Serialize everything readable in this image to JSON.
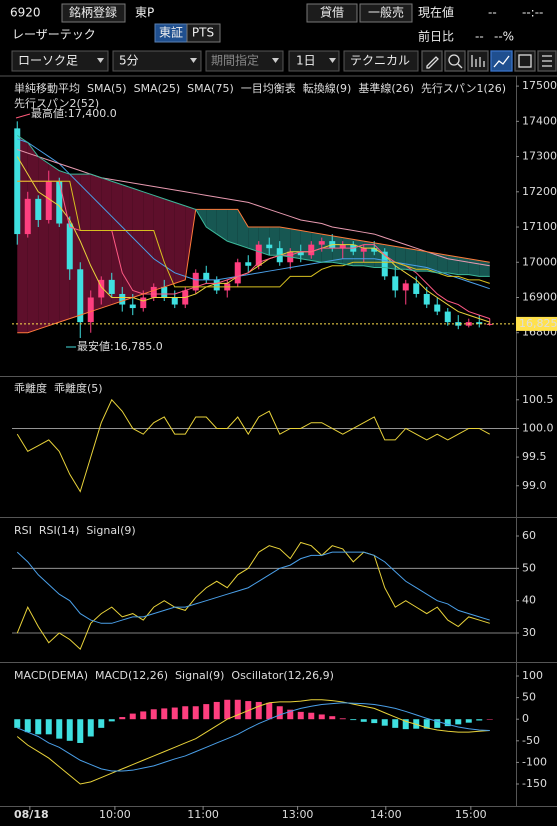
{
  "header": {
    "code": "6920",
    "register": "銘柄登録",
    "market": "東P",
    "name": "レーザーテック",
    "exchanges": [
      "東証",
      "PTS"
    ],
    "lending": "貸借",
    "sell_type": "一般売",
    "price_label": "現在値",
    "price": "--",
    "price_time": "--:--",
    "change_label": "前日比",
    "change": "--",
    "change_pct": "--%"
  },
  "toolbar": {
    "chart_kind": "ローソク足",
    "interval": "5分",
    "period": "期間指定",
    "span": "1日",
    "technical": "テクニカル"
  },
  "chart_data": [
    {
      "type": "candlestick",
      "legend_groups": [
        "単純移動平均",
        "一目均衡表"
      ],
      "up_color": "#ff3f7f",
      "down_color": "#3fe0e0",
      "open": [
        17380,
        17080,
        17180,
        17120,
        17230,
        17110,
        16980,
        16830,
        16900,
        16950,
        16910,
        16880,
        16870,
        16900,
        16930,
        16900,
        16880,
        16920,
        16970,
        16950,
        16920,
        16940,
        17000,
        16990,
        17050,
        17040,
        17000,
        17030,
        17020,
        17050,
        17060,
        17040,
        17050,
        17030,
        17040,
        17030,
        16960,
        16920,
        16940,
        16910,
        16880,
        16860,
        16830,
        16820,
        16830,
        16825
      ],
      "high": [
        17400,
        17200,
        17190,
        17260,
        17240,
        17130,
        17000,
        16920,
        16960,
        16970,
        16930,
        16910,
        16920,
        16940,
        16950,
        16920,
        16930,
        16980,
        16990,
        16960,
        16950,
        17010,
        17020,
        17060,
        17070,
        17060,
        17040,
        17050,
        17060,
        17070,
        17080,
        17060,
        17060,
        17050,
        17060,
        17040,
        16990,
        16950,
        16960,
        16930,
        16900,
        16870,
        16850,
        16840,
        16850,
        16840
      ],
      "low": [
        17050,
        17070,
        17100,
        17110,
        17100,
        16950,
        16785,
        16800,
        16880,
        16900,
        16860,
        16850,
        16860,
        16890,
        16890,
        16870,
        16870,
        16910,
        16940,
        16910,
        16900,
        16930,
        16970,
        16980,
        17020,
        16990,
        16980,
        17000,
        17010,
        17030,
        17030,
        17010,
        17020,
        17000,
        17020,
        16950,
        16900,
        16880,
        16900,
        16870,
        16850,
        16820,
        16810,
        16815,
        16815,
        16820
      ],
      "close": [
        17080,
        17180,
        17120,
        17230,
        17110,
        16980,
        16830,
        16900,
        16950,
        16910,
        16880,
        16870,
        16900,
        16930,
        16900,
        16880,
        16920,
        16970,
        16950,
        16920,
        16940,
        17000,
        16990,
        17050,
        17040,
        17000,
        17030,
        17020,
        17050,
        17060,
        17040,
        17050,
        17030,
        17040,
        17030,
        16960,
        16920,
        16940,
        16910,
        16880,
        16860,
        16830,
        16820,
        16830,
        16825,
        16825
      ],
      "series": [
        {
          "name": "SMA(5)",
          "group": 0,
          "color": "#e8d23a",
          "values": [
            17300,
            17250,
            17200,
            17180,
            17160,
            17120,
            17060,
            16990,
            16930,
            16900,
            16900,
            16900,
            16890,
            16900,
            16900,
            16900,
            16900,
            16910,
            16930,
            16940,
            16940,
            16960,
            16970,
            16990,
            17010,
            17020,
            17030,
            17030,
            17030,
            17040,
            17050,
            17050,
            17050,
            17040,
            17040,
            17020,
            16990,
            16970,
            16950,
            16920,
            16900,
            16880,
            16860,
            16850,
            16840,
            16830
          ]
        },
        {
          "name": "SMA(25)",
          "group": 0,
          "color": "#4a9fe8",
          "values": [
            17350,
            17340,
            17320,
            17300,
            17280,
            17250,
            17220,
            17190,
            17160,
            17130,
            17100,
            17070,
            17040,
            17010,
            16990,
            16970,
            16960,
            16950,
            16950,
            16950,
            16955,
            16960,
            16965,
            16970,
            16975,
            16980,
            16985,
            16990,
            16995,
            17000,
            17005,
            17010,
            17010,
            17010,
            17010,
            17005,
            17000,
            16995,
            16990,
            16985,
            16975,
            16965,
            16955,
            16945,
            16935,
            16925
          ]
        },
        {
          "name": "SMA(75)",
          "group": 0,
          "color": "#e89ab0",
          "values": [
            17320,
            17310,
            17300,
            17290,
            17280,
            17270,
            17260,
            17250,
            17240,
            17235,
            17230,
            17225,
            17220,
            17215,
            17210,
            17205,
            17200,
            17195,
            17190,
            17185,
            17180,
            17175,
            17170,
            17160,
            17150,
            17140,
            17130,
            17120,
            17115,
            17110,
            17100,
            17095,
            17090,
            17085,
            17080,
            17070,
            17060,
            17050,
            17040,
            17030,
            17020,
            17010,
            17005,
            17000,
            16995,
            16990
          ]
        },
        {
          "name": "転換線(9)",
          "group": 1,
          "color": "#ff5a84",
          "values": [
            17230,
            17230,
            17230,
            17230,
            17230,
            17100,
            17090,
            17090,
            17090,
            17090,
            16970,
            16920,
            16910,
            16910,
            16910,
            16910,
            16920,
            16930,
            16940,
            16940,
            16950,
            16960,
            16970,
            17000,
            17010,
            17020,
            17020,
            17030,
            17030,
            17040,
            17040,
            17040,
            17040,
            17050,
            17050,
            17020,
            17000,
            16990,
            16970,
            16940,
            16910,
            16890,
            16880,
            16860,
            16850,
            16840
          ]
        },
        {
          "name": "基準線(26)",
          "group": 1,
          "color": "#d8c020",
          "values": [
            17230,
            17230,
            17230,
            17230,
            17230,
            17230,
            17090,
            17090,
            17090,
            17090,
            17090,
            17090,
            17090,
            17090,
            17000,
            16930,
            16930,
            16930,
            16930,
            16930,
            16930,
            16930,
            16930,
            16930,
            16930,
            16930,
            16960,
            16960,
            16960,
            16980,
            16990,
            16990,
            17000,
            17000,
            17000,
            17000,
            17000,
            16990,
            16980,
            16980,
            16970,
            16960,
            16960,
            16950,
            16950,
            16940
          ]
        },
        {
          "name": "先行スパン1(26)",
          "group": 1,
          "kind": "span",
          "color": "#ff7a3a",
          "values": [
            16800,
            16800,
            16810,
            16820,
            16830,
            16840,
            16850,
            16860,
            16870,
            16880,
            16890,
            16900,
            16910,
            16920,
            16930,
            16940,
            16950,
            17150,
            17150,
            17150,
            17150,
            17150,
            17100,
            17100,
            17100,
            17100,
            17095,
            17090,
            17085,
            17080,
            17075,
            17070,
            17065,
            17060,
            17055,
            17050,
            17045,
            17040,
            17035,
            17030,
            17025,
            17020,
            17015,
            17010,
            17005,
            17000
          ]
        },
        {
          "name": "先行スパン2(52)",
          "group": 1,
          "kind": "span",
          "color": "#3cb89a",
          "values": [
            17360,
            17340,
            17300,
            17280,
            17260,
            17250,
            17250,
            17250,
            17240,
            17230,
            17220,
            17210,
            17200,
            17190,
            17180,
            17170,
            17160,
            17150,
            17100,
            17080,
            17060,
            17050,
            17040,
            17030,
            17020,
            17020,
            17015,
            17010,
            17005,
            17000,
            17000,
            16995,
            16990,
            16990,
            16985,
            16985,
            16980,
            16980,
            16975,
            16975,
            16970,
            16970,
            16965,
            16965,
            16960,
            16960
          ]
        }
      ],
      "cloud_colors": [
        "#6e1232",
        "#1b6660"
      ],
      "annotations": [
        {
          "text": "最高値:17,400.0",
          "color": "#ff5a7a"
        },
        {
          "text": "最安値:16,785.0",
          "color": "#44dddd"
        }
      ],
      "last_price": {
        "value": 16825,
        "label": "16,825"
      },
      "last_price_color": "#ffe14d",
      "xlim": [
        -0.5,
        47.5
      ],
      "ylim": [
        16680,
        17523
      ],
      "yticks": [
        16800,
        16900,
        17000,
        17100,
        17200,
        17300,
        17400,
        17500
      ]
    },
    {
      "type": "line",
      "title": "乖離度",
      "series": [
        {
          "name": "乖離度(5)",
          "color": "#e8d23a",
          "values": [
            99.9,
            99.6,
            99.7,
            99.8,
            99.6,
            99.2,
            98.9,
            99.5,
            100.1,
            100.5,
            100.3,
            100.0,
            99.9,
            100.1,
            100.2,
            99.9,
            99.9,
            100.2,
            100.2,
            100.0,
            100.0,
            100.2,
            99.9,
            100.2,
            100.3,
            99.9,
            100.0,
            100.0,
            100.1,
            100.1,
            100.0,
            99.9,
            100.0,
            100.1,
            100.2,
            99.8,
            99.8,
            100.0,
            99.9,
            99.8,
            99.9,
            99.8,
            99.9,
            100.0,
            100.0,
            99.9
          ]
        }
      ],
      "reference_lines": [
        100
      ],
      "xlim": [
        -0.5,
        47.5
      ],
      "ylim": [
        98.49,
        100.88
      ],
      "yticks": [
        {
          "value": 99,
          "label": "99.0"
        },
        99.5,
        {
          "value": 100,
          "label": "100.0"
        },
        100.5
      ]
    },
    {
      "type": "line",
      "title": "RSI",
      "series": [
        {
          "name": "RSI(14)",
          "color": "#e8d23a",
          "values": [
            30,
            38,
            32,
            27,
            30,
            28,
            25,
            33,
            36,
            38,
            35,
            36,
            34,
            38,
            40,
            38,
            37,
            41,
            44,
            46,
            44,
            48,
            50,
            55,
            57,
            56,
            53,
            58,
            57,
            54,
            57,
            56,
            52,
            55,
            54,
            44,
            38,
            40,
            38,
            36,
            38,
            34,
            32,
            35,
            34,
            33
          ]
        },
        {
          "name": "Signal(9)",
          "color": "#4a9fe8",
          "values": [
            55,
            52,
            48,
            45,
            42,
            40,
            36,
            34,
            33,
            33,
            34,
            35,
            35,
            36,
            37,
            38,
            38,
            39,
            40,
            41,
            42,
            43,
            44,
            46,
            48,
            50,
            51,
            53,
            54,
            54,
            55,
            55,
            55,
            55,
            54,
            52,
            49,
            46,
            44,
            42,
            40,
            39,
            37,
            36,
            35,
            34
          ]
        }
      ],
      "reference_lines": [
        30,
        50
      ],
      "xlim": [
        -0.5,
        47.5
      ],
      "ylim": [
        21.65,
        64.95
      ],
      "yticks": [
        30,
        40,
        50,
        60
      ]
    },
    {
      "type": "combo",
      "title": "MACD(DEMA)",
      "series": [
        {
          "name": "MACD(12,26)",
          "color": "#e8d23a",
          "values": [
            -40,
            -60,
            -75,
            -90,
            -110,
            -130,
            -150,
            -145,
            -135,
            -125,
            -115,
            -105,
            -95,
            -85,
            -75,
            -65,
            -55,
            -45,
            -30,
            -15,
            0,
            10,
            20,
            30,
            38,
            40,
            40,
            42,
            45,
            45,
            43,
            40,
            35,
            30,
            25,
            15,
            5,
            -5,
            -12,
            -20,
            -25,
            -28,
            -30,
            -30,
            -28,
            -26
          ]
        },
        {
          "name": "Signal(9)",
          "color": "#4a9fe8",
          "values": [
            -20,
            -30,
            -40,
            -55,
            -65,
            -80,
            -95,
            -105,
            -115,
            -120,
            -120,
            -118,
            -113,
            -108,
            -100,
            -92,
            -85,
            -75,
            -65,
            -55,
            -45,
            -35,
            -22,
            -10,
            0,
            10,
            18,
            25,
            30,
            34,
            36,
            38,
            37,
            36,
            34,
            30,
            25,
            18,
            10,
            2,
            -5,
            -12,
            -18,
            -22,
            -25,
            -26
          ]
        },
        {
          "name": "Oscillator(12,26,9)",
          "kind": "bar",
          "color": "#ff3f7f",
          "negative_color": "#3fe0e0",
          "values": [
            -20,
            -30,
            -35,
            -35,
            -45,
            -50,
            -55,
            -40,
            -20,
            -5,
            5,
            13,
            18,
            23,
            25,
            27,
            30,
            30,
            35,
            40,
            45,
            45,
            42,
            40,
            38,
            30,
            22,
            17,
            15,
            11,
            7,
            2,
            -2,
            -6,
            -9,
            -15,
            -20,
            -23,
            -22,
            -22,
            -20,
            -16,
            -12,
            -8,
            -3,
            0
          ]
        }
      ],
      "xlim": [
        -0.5,
        47.5
      ],
      "ylim": [
        -198.6,
        125.5
      ],
      "yticks": [
        -150,
        -100,
        -50,
        0,
        50,
        100
      ],
      "xticks": [
        {
          "value": 1.2,
          "label": "08/18"
        },
        {
          "value": 9.3,
          "label": "10:00"
        },
        {
          "value": 17.7,
          "label": "11:00"
        },
        {
          "value": 26.7,
          "label": "13:00"
        },
        {
          "value": 35.1,
          "label": "14:00"
        },
        {
          "value": 43.2,
          "label": "15:00"
        }
      ]
    }
  ]
}
